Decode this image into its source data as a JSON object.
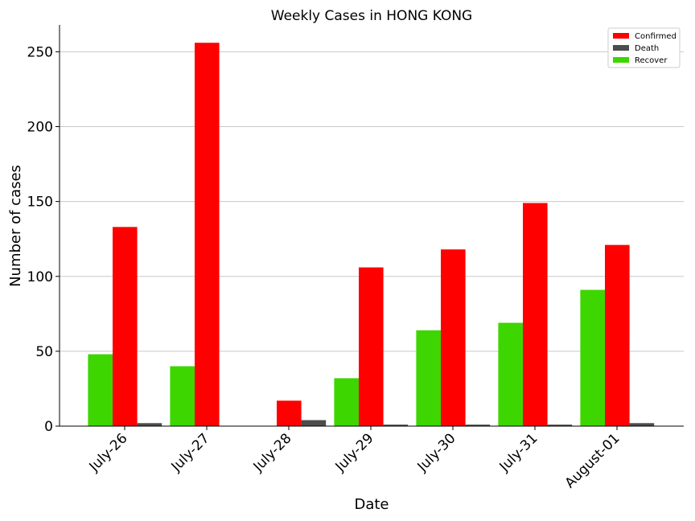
{
  "chart_data": {
    "type": "bar",
    "title": "Weekly Cases in HONG KONG",
    "xlabel": "Date",
    "ylabel": "Number of cases",
    "categories": [
      "July-26",
      "July-27",
      "July-28",
      "July-29",
      "July-30",
      "July-31",
      "August-01"
    ],
    "series": [
      {
        "name": "Recover",
        "color": "#3dd600",
        "values": [
          48,
          40,
          0,
          32,
          64,
          69,
          91
        ]
      },
      {
        "name": "Confirmed",
        "color": "#ff0000",
        "values": [
          133,
          256,
          17,
          106,
          118,
          149,
          121
        ]
      },
      {
        "name": "Death",
        "color": "#4c4c4c",
        "values": [
          2,
          0,
          4,
          1,
          1,
          1,
          2
        ]
      }
    ],
    "legend_order": [
      "Confirmed",
      "Death",
      "Recover"
    ],
    "yticks": [
      0,
      50,
      100,
      150,
      200,
      250
    ],
    "ylim": [
      0,
      269
    ],
    "grid": "horizontal",
    "legend_position": "top-right"
  }
}
